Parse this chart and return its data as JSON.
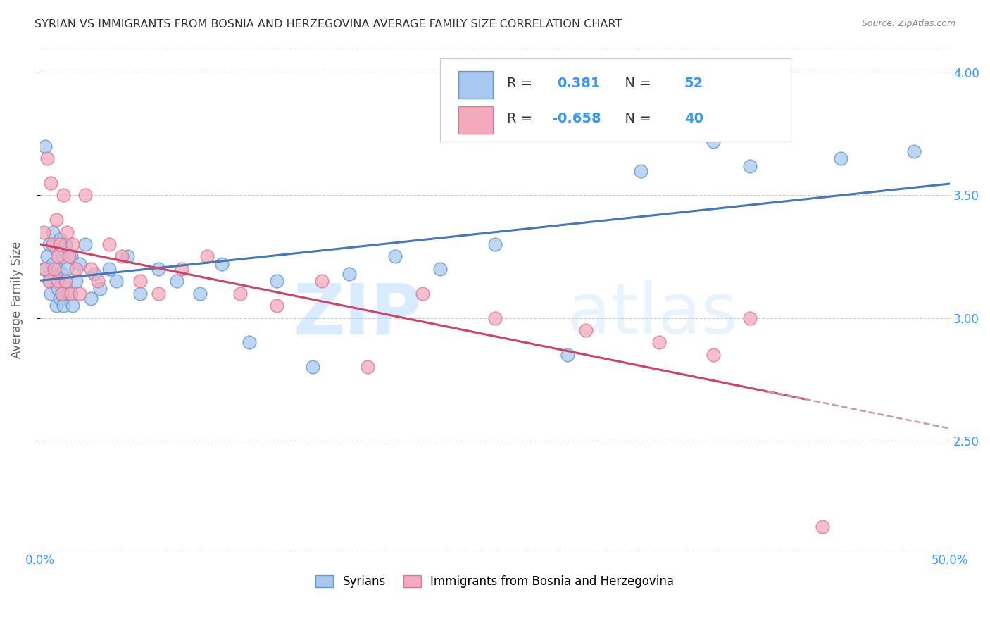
{
  "title": "SYRIAN VS IMMIGRANTS FROM BOSNIA AND HERZEGOVINA AVERAGE FAMILY SIZE CORRELATION CHART",
  "source": "Source: ZipAtlas.com",
  "ylabel": "Average Family Size",
  "yticks": [
    2.5,
    3.0,
    3.5,
    4.0
  ],
  "xlim": [
    0.0,
    0.5
  ],
  "ylim": [
    2.05,
    4.1
  ],
  "watermark": "ZIPatlas",
  "legend_label1": "Syrians",
  "legend_label2": "Immigrants from Bosnia and Herzegovina",
  "R1": "0.381",
  "N1": "52",
  "R2": "-0.658",
  "N2": "40",
  "color_blue_face": "#A8C8F0",
  "color_blue_edge": "#6699CC",
  "color_pink_face": "#F4AABC",
  "color_pink_edge": "#DD7799",
  "line_color_blue": "#4477BB",
  "line_color_pink": "#CC4466",
  "line_color_pink_dashed": "#CC99AA",
  "background_color": "#FFFFFF",
  "title_color": "#333333",
  "source_color": "#888888",
  "axis_color": "#3399FF",
  "grid_color": "#CCCCCC",
  "legend_box_color": "#EEEEEE",
  "legend_text_dark": "#333333",
  "syrian_x": [
    0.002,
    0.003,
    0.004,
    0.005,
    0.005,
    0.006,
    0.007,
    0.007,
    0.008,
    0.009,
    0.009,
    0.01,
    0.01,
    0.011,
    0.011,
    0.012,
    0.012,
    0.013,
    0.013,
    0.014,
    0.014,
    0.015,
    0.016,
    0.017,
    0.018,
    0.02,
    0.022,
    0.025,
    0.028,
    0.03,
    0.033,
    0.038,
    0.042,
    0.048,
    0.055,
    0.065,
    0.075,
    0.088,
    0.1,
    0.115,
    0.13,
    0.15,
    0.17,
    0.195,
    0.22,
    0.25,
    0.29,
    0.33,
    0.37,
    0.39,
    0.44,
    0.48
  ],
  "syrian_y": [
    3.2,
    3.7,
    3.25,
    3.15,
    3.3,
    3.1,
    3.22,
    3.35,
    3.18,
    3.05,
    3.28,
    3.12,
    3.2,
    3.08,
    3.32,
    3.18,
    3.1,
    3.25,
    3.05,
    3.15,
    3.3,
    3.2,
    3.1,
    3.25,
    3.05,
    3.15,
    3.22,
    3.3,
    3.08,
    3.18,
    3.12,
    3.2,
    3.15,
    3.25,
    3.1,
    3.2,
    3.15,
    3.1,
    3.22,
    2.9,
    3.15,
    2.8,
    3.18,
    3.25,
    3.2,
    3.3,
    2.85,
    3.6,
    3.72,
    3.62,
    3.65,
    3.68
  ],
  "bosnia_x": [
    0.002,
    0.003,
    0.004,
    0.005,
    0.006,
    0.007,
    0.008,
    0.009,
    0.01,
    0.01,
    0.011,
    0.012,
    0.013,
    0.014,
    0.015,
    0.016,
    0.017,
    0.018,
    0.02,
    0.022,
    0.025,
    0.028,
    0.032,
    0.038,
    0.045,
    0.055,
    0.065,
    0.078,
    0.092,
    0.11,
    0.13,
    0.155,
    0.18,
    0.21,
    0.25,
    0.3,
    0.34,
    0.37,
    0.39,
    0.43
  ],
  "bosnia_y": [
    3.35,
    3.2,
    3.65,
    3.15,
    3.55,
    3.3,
    3.2,
    3.4,
    3.25,
    3.15,
    3.3,
    3.1,
    3.5,
    3.15,
    3.35,
    3.25,
    3.1,
    3.3,
    3.2,
    3.1,
    3.5,
    3.2,
    3.15,
    3.3,
    3.25,
    3.15,
    3.1,
    3.2,
    3.25,
    3.1,
    3.05,
    3.15,
    2.8,
    3.1,
    3.0,
    2.95,
    2.9,
    2.85,
    3.0,
    2.15
  ]
}
